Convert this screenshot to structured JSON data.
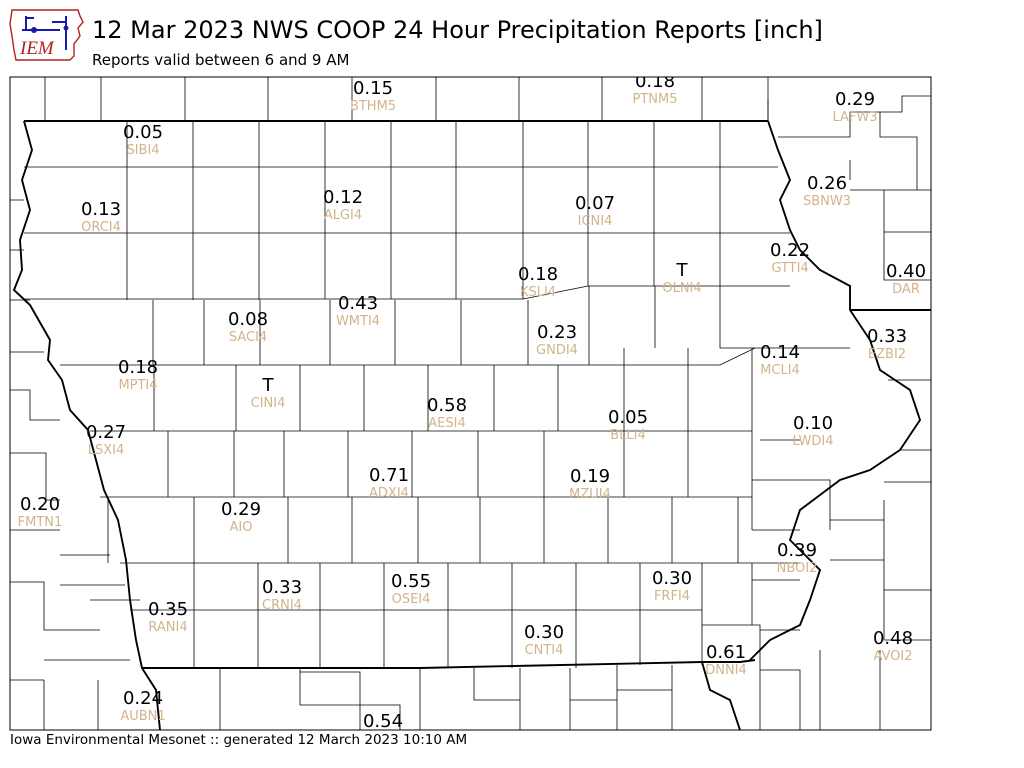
{
  "header": {
    "logo_text": "IEM",
    "title": "12 Mar 2023 NWS COOP 24 Hour Precipitation Reports [inch]",
    "subtitle": "Reports valid between 6 and 9 AM"
  },
  "footer": {
    "text": "Iowa Environmental Mesonet :: generated 12 March 2023 10:10 AM"
  },
  "colors": {
    "value": "#000000",
    "station_id": "#d2b48c",
    "county_border": "#000000",
    "state_border": "#000000",
    "logo_red": "#b22222",
    "logo_blue": "#1a1aa6"
  },
  "stations": [
    {
      "id": "BTHM5",
      "value": "0.15"
    },
    {
      "id": "PTNM5",
      "value": "0.18"
    },
    {
      "id": "LAFW3",
      "value": "0.29"
    },
    {
      "id": "SIBI4",
      "value": "0.05"
    },
    {
      "id": "ORCI4",
      "value": "0.13"
    },
    {
      "id": "ALGI4",
      "value": "0.12"
    },
    {
      "id": "ICNI4",
      "value": "0.07"
    },
    {
      "id": "SBNW3",
      "value": "0.26"
    },
    {
      "id": "GTTI4",
      "value": "0.22"
    },
    {
      "id": "OLNI4",
      "value": "T"
    },
    {
      "id": "KSLI4",
      "value": "0.18"
    },
    {
      "id": "DAR",
      "value": "0.40"
    },
    {
      "id": "SACI4",
      "value": "0.08"
    },
    {
      "id": "WMTI4",
      "value": "0.43"
    },
    {
      "id": "GNDI4",
      "value": "0.23"
    },
    {
      "id": "EZBI2",
      "value": "0.33"
    },
    {
      "id": "MCLI4",
      "value": "0.14"
    },
    {
      "id": "MPTI4",
      "value": "0.18"
    },
    {
      "id": "CINI4",
      "value": "T"
    },
    {
      "id": "AESI4",
      "value": "0.58"
    },
    {
      "id": "BLLI4",
      "value": "0.05"
    },
    {
      "id": "LWDI4",
      "value": "0.10"
    },
    {
      "id": "LSXI4",
      "value": "0.27"
    },
    {
      "id": "ADXI4",
      "value": "0.71"
    },
    {
      "id": "MZUI4",
      "value": "0.19"
    },
    {
      "id": "FMTN1",
      "value": "0.20"
    },
    {
      "id": "AIO",
      "value": "0.29"
    },
    {
      "id": "NBOI2",
      "value": "0.39"
    },
    {
      "id": "CRNI4",
      "value": "0.33"
    },
    {
      "id": "OSEI4",
      "value": "0.55"
    },
    {
      "id": "FRFI4",
      "value": "0.30"
    },
    {
      "id": "RANI4",
      "value": "0.35"
    },
    {
      "id": "CNTI4",
      "value": "0.30"
    },
    {
      "id": "AVOI2",
      "value": "0.48"
    },
    {
      "id": "DNNI4",
      "value": "0.61"
    },
    {
      "id": "AUBN1",
      "value": "0.24"
    },
    {
      "id": "",
      "value": "0.54"
    }
  ]
}
